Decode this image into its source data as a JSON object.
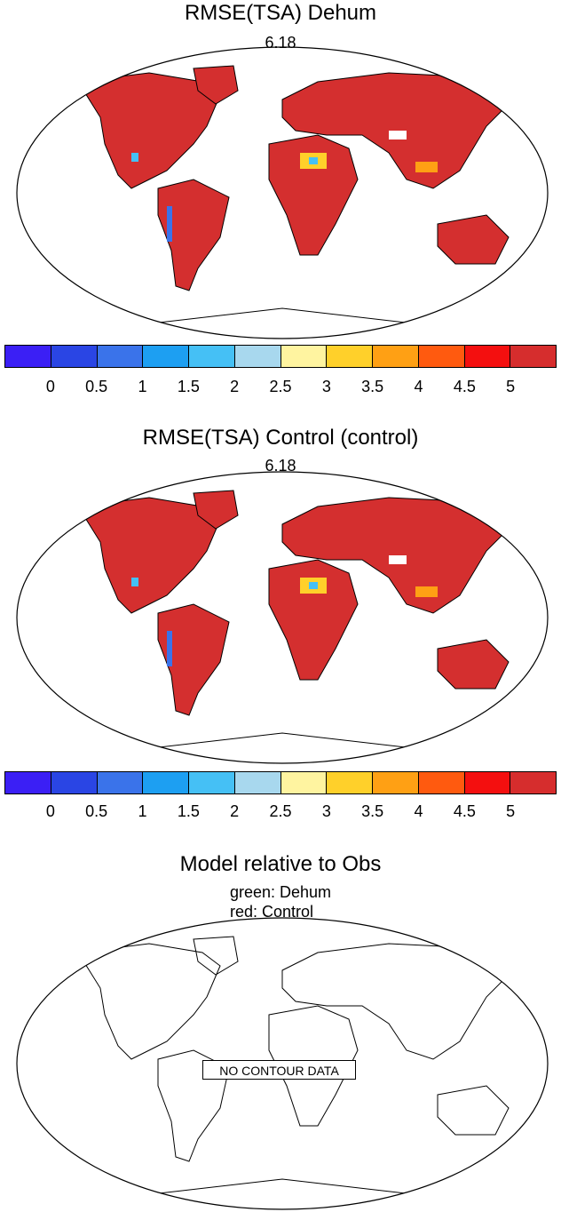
{
  "panels": [
    {
      "title": "RMSE(TSA) Dehum",
      "value": "6.18"
    },
    {
      "title": "RMSE(TSA) Control (control)",
      "value": "6.18"
    }
  ],
  "colorbar": {
    "colors": [
      "#3b1ff5",
      "#2a45e4",
      "#3a73ea",
      "#1d9ff2",
      "#45c0f5",
      "#a8d8ee",
      "#fff4a0",
      "#ffd02a",
      "#ffa014",
      "#ff5a0f",
      "#f40f0f",
      "#d62d2d"
    ],
    "tick_labels": [
      "0",
      "0.5",
      "1",
      "1.5",
      "2",
      "2.5",
      "3",
      "3.5",
      "4",
      "4.5",
      "5"
    ]
  },
  "bottom_panel": {
    "title": "Model relative to Obs",
    "legend_green": "green: Dehum",
    "legend_red": "red: Control",
    "no_data_label": "NO CONTOUR DATA"
  },
  "map_colors": {
    "land": "#d42f2f",
    "ocean": "#ffffff",
    "coast": "#000000"
  }
}
